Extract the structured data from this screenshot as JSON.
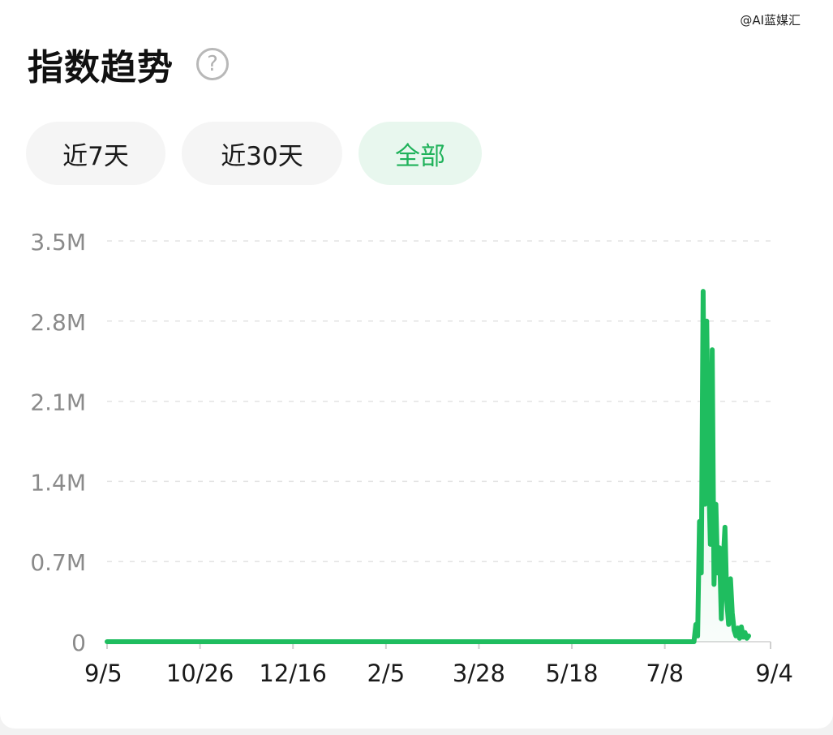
{
  "watermark": "@AI蓝媒汇",
  "header": {
    "title": "指数趋势",
    "help_icon": "question-circle-icon"
  },
  "tabs": [
    {
      "label": "近7天",
      "active": false
    },
    {
      "label": "近30天",
      "active": false
    },
    {
      "label": "全部",
      "active": true
    }
  ],
  "colors": {
    "line": "#1fbd5f",
    "active_tab_text": "#1fb25a",
    "active_tab_bg": "#e8f7ee",
    "axis_text": "#8a8a8a"
  },
  "chart_data": {
    "type": "line",
    "ylim": [
      0,
      3.5
    ],
    "y_ticks": [
      {
        "value": 3.5,
        "label": "3.5M"
      },
      {
        "value": 2.8,
        "label": "2.8M"
      },
      {
        "value": 2.1,
        "label": "2.1M"
      },
      {
        "value": 1.4,
        "label": "1.4M"
      },
      {
        "value": 0.7,
        "label": "0.7M"
      },
      {
        "value": 0,
        "label": "0"
      }
    ],
    "x_ticks": [
      "9/5",
      "10/26",
      "12/16",
      "2/5",
      "3/28",
      "5/18",
      "7/8",
      "9/4"
    ],
    "grid": true,
    "series": [
      {
        "points": [
          {
            "x": "9/5",
            "y": 0
          },
          {
            "x": "7/24",
            "y": 0
          },
          {
            "x": "7/25",
            "y": 0.15
          },
          {
            "x": "7/26",
            "y": 0.05
          },
          {
            "x": "7/27",
            "y": 1.05
          },
          {
            "x": "7/28",
            "y": 0.6
          },
          {
            "x": "7/29",
            "y": 3.06
          },
          {
            "x": "7/30",
            "y": 1.2
          },
          {
            "x": "7/31",
            "y": 2.8
          },
          {
            "x": "8/1",
            "y": 1.5
          },
          {
            "x": "8/2",
            "y": 0.85
          },
          {
            "x": "8/3",
            "y": 2.55
          },
          {
            "x": "8/4",
            "y": 0.5
          },
          {
            "x": "8/5",
            "y": 1.2
          },
          {
            "x": "8/6",
            "y": 0.6
          },
          {
            "x": "8/7",
            "y": 0.82
          },
          {
            "x": "8/8",
            "y": 0.2
          },
          {
            "x": "8/9",
            "y": 0.7
          },
          {
            "x": "8/10",
            "y": 1.0
          },
          {
            "x": "8/11",
            "y": 0.35
          },
          {
            "x": "8/12",
            "y": 0.15
          },
          {
            "x": "8/13",
            "y": 0.55
          },
          {
            "x": "8/14",
            "y": 0.25
          },
          {
            "x": "8/15",
            "y": 0.1
          },
          {
            "x": "8/16",
            "y": 0.05
          },
          {
            "x": "8/17",
            "y": 0.12
          },
          {
            "x": "8/18",
            "y": 0.03
          },
          {
            "x": "8/19",
            "y": 0.13
          },
          {
            "x": "8/20",
            "y": 0.04
          },
          {
            "x": "8/21",
            "y": 0.08
          },
          {
            "x": "8/22",
            "y": 0.03
          },
          {
            "x": "8/23",
            "y": 0.05
          }
        ]
      }
    ]
  }
}
